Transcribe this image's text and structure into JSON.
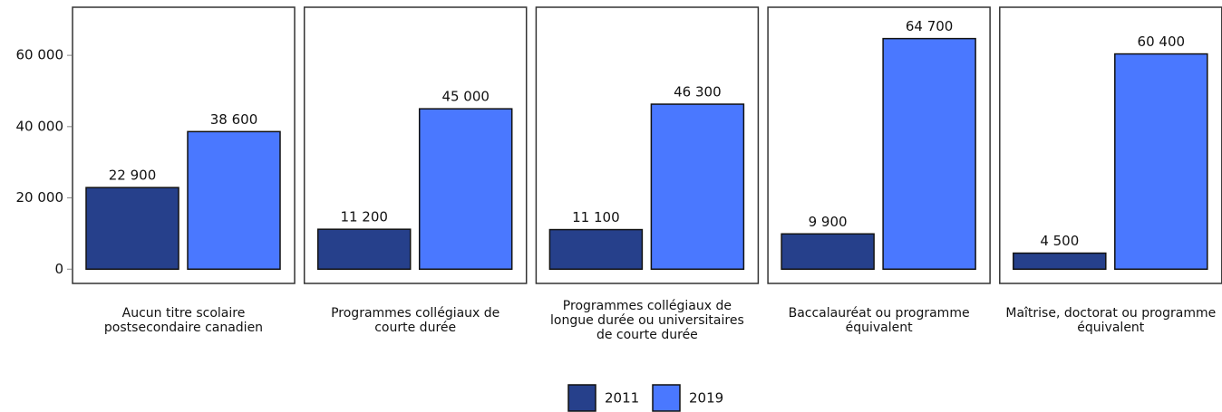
{
  "chart_data": {
    "type": "bar",
    "categories": [
      "Aucun titre scolaire postsecondaire canadien",
      "Programmes collégiaux de courte durée",
      "Programmes collégiaux de longue durée ou universitaires de courte durée",
      "Baccalauréat ou programme équivalent",
      "Maîtrise, doctorat ou programme équivalent"
    ],
    "series": [
      {
        "name": "2011",
        "color": "#26408b",
        "values": [
          22900,
          11200,
          11100,
          9900,
          4500
        ],
        "value_labels": [
          "22 900",
          "11 200",
          "11 100",
          "9 900",
          "4 500"
        ]
      },
      {
        "name": "2019",
        "color": "#4a78ff",
        "values": [
          38600,
          45000,
          46300,
          64700,
          60400
        ],
        "value_labels": [
          "38 600",
          "45 000",
          "46 300",
          "64 700",
          "60 400"
        ]
      }
    ],
    "ylim": [
      -4000,
      73500
    ],
    "yticks": [
      0,
      {
        "value": 20000,
        "label": "20 000"
      },
      {
        "value": 40000,
        "label": "40 000"
      },
      {
        "value": 60000,
        "label": "60 000"
      }
    ],
    "legend": "bottom"
  }
}
